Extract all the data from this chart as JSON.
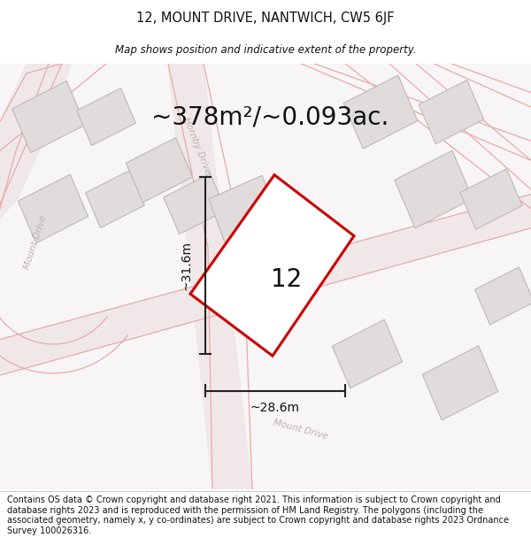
{
  "title": "12, MOUNT DRIVE, NANTWICH, CW5 6JF",
  "subtitle": "Map shows position and indicative extent of the property.",
  "area_label": "~378m²/~0.093ac.",
  "plot_number": "12",
  "dim_width": "~28.6m",
  "dim_height": "~31.6m",
  "footer": "Contains OS data © Crown copyright and database right 2021. This information is subject to Crown copyright and database rights 2023 and is reproduced with the permission of HM Land Registry. The polygons (including the associated geometry, namely x, y co-ordinates) are subject to Crown copyright and database rights 2023 Ordnance Survey 100026316.",
  "bg_color": "#f7f5f5",
  "building_fill": "#e0dcdc",
  "building_edge": "#c0b8b8",
  "road_line_color": "#e8aaaa",
  "road_fill_color": "#f0e8e8",
  "plot_line_color": "#cc0000",
  "dim_line_color": "#222222",
  "title_color": "#111111",
  "footer_color": "#111111",
  "road_label_color": "#c0b0b0",
  "footer_fontsize": 7.0,
  "title_fontsize": 10.5,
  "subtitle_fontsize": 8.5,
  "area_label_fontsize": 20,
  "plot_number_fontsize": 20,
  "dim_fontsize": 10
}
